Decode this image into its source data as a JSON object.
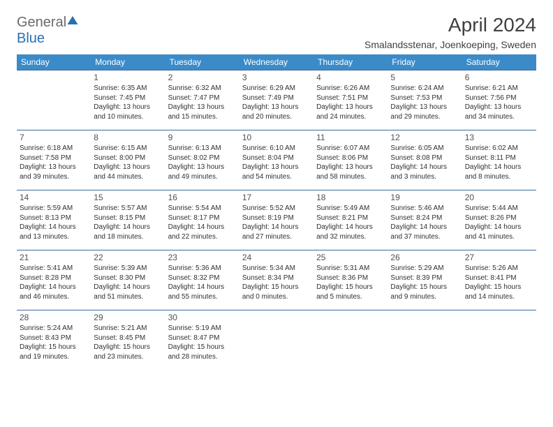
{
  "brand": {
    "part1": "General",
    "part2": "Blue"
  },
  "title": "April 2024",
  "location": "Smalandsstenar, Joenkoeping, Sweden",
  "weekdays": [
    "Sunday",
    "Monday",
    "Tuesday",
    "Wednesday",
    "Thursday",
    "Friday",
    "Saturday"
  ],
  "colors": {
    "header_bg": "#3b8bc9",
    "header_fg": "#ffffff",
    "rule": "#3b6a9a",
    "text": "#303030",
    "title": "#404040"
  },
  "weeks": [
    [
      null,
      {
        "n": "1",
        "sunrise": "6:35 AM",
        "sunset": "7:45 PM",
        "daylight": "13 hours and 10 minutes."
      },
      {
        "n": "2",
        "sunrise": "6:32 AM",
        "sunset": "7:47 PM",
        "daylight": "13 hours and 15 minutes."
      },
      {
        "n": "3",
        "sunrise": "6:29 AM",
        "sunset": "7:49 PM",
        "daylight": "13 hours and 20 minutes."
      },
      {
        "n": "4",
        "sunrise": "6:26 AM",
        "sunset": "7:51 PM",
        "daylight": "13 hours and 24 minutes."
      },
      {
        "n": "5",
        "sunrise": "6:24 AM",
        "sunset": "7:53 PM",
        "daylight": "13 hours and 29 minutes."
      },
      {
        "n": "6",
        "sunrise": "6:21 AM",
        "sunset": "7:56 PM",
        "daylight": "13 hours and 34 minutes."
      }
    ],
    [
      {
        "n": "7",
        "sunrise": "6:18 AM",
        "sunset": "7:58 PM",
        "daylight": "13 hours and 39 minutes."
      },
      {
        "n": "8",
        "sunrise": "6:15 AM",
        "sunset": "8:00 PM",
        "daylight": "13 hours and 44 minutes."
      },
      {
        "n": "9",
        "sunrise": "6:13 AM",
        "sunset": "8:02 PM",
        "daylight": "13 hours and 49 minutes."
      },
      {
        "n": "10",
        "sunrise": "6:10 AM",
        "sunset": "8:04 PM",
        "daylight": "13 hours and 54 minutes."
      },
      {
        "n": "11",
        "sunrise": "6:07 AM",
        "sunset": "8:06 PM",
        "daylight": "13 hours and 58 minutes."
      },
      {
        "n": "12",
        "sunrise": "6:05 AM",
        "sunset": "8:08 PM",
        "daylight": "14 hours and 3 minutes."
      },
      {
        "n": "13",
        "sunrise": "6:02 AM",
        "sunset": "8:11 PM",
        "daylight": "14 hours and 8 minutes."
      }
    ],
    [
      {
        "n": "14",
        "sunrise": "5:59 AM",
        "sunset": "8:13 PM",
        "daylight": "14 hours and 13 minutes."
      },
      {
        "n": "15",
        "sunrise": "5:57 AM",
        "sunset": "8:15 PM",
        "daylight": "14 hours and 18 minutes."
      },
      {
        "n": "16",
        "sunrise": "5:54 AM",
        "sunset": "8:17 PM",
        "daylight": "14 hours and 22 minutes."
      },
      {
        "n": "17",
        "sunrise": "5:52 AM",
        "sunset": "8:19 PM",
        "daylight": "14 hours and 27 minutes."
      },
      {
        "n": "18",
        "sunrise": "5:49 AM",
        "sunset": "8:21 PM",
        "daylight": "14 hours and 32 minutes."
      },
      {
        "n": "19",
        "sunrise": "5:46 AM",
        "sunset": "8:24 PM",
        "daylight": "14 hours and 37 minutes."
      },
      {
        "n": "20",
        "sunrise": "5:44 AM",
        "sunset": "8:26 PM",
        "daylight": "14 hours and 41 minutes."
      }
    ],
    [
      {
        "n": "21",
        "sunrise": "5:41 AM",
        "sunset": "8:28 PM",
        "daylight": "14 hours and 46 minutes."
      },
      {
        "n": "22",
        "sunrise": "5:39 AM",
        "sunset": "8:30 PM",
        "daylight": "14 hours and 51 minutes."
      },
      {
        "n": "23",
        "sunrise": "5:36 AM",
        "sunset": "8:32 PM",
        "daylight": "14 hours and 55 minutes."
      },
      {
        "n": "24",
        "sunrise": "5:34 AM",
        "sunset": "8:34 PM",
        "daylight": "15 hours and 0 minutes."
      },
      {
        "n": "25",
        "sunrise": "5:31 AM",
        "sunset": "8:36 PM",
        "daylight": "15 hours and 5 minutes."
      },
      {
        "n": "26",
        "sunrise": "5:29 AM",
        "sunset": "8:39 PM",
        "daylight": "15 hours and 9 minutes."
      },
      {
        "n": "27",
        "sunrise": "5:26 AM",
        "sunset": "8:41 PM",
        "daylight": "15 hours and 14 minutes."
      }
    ],
    [
      {
        "n": "28",
        "sunrise": "5:24 AM",
        "sunset": "8:43 PM",
        "daylight": "15 hours and 19 minutes."
      },
      {
        "n": "29",
        "sunrise": "5:21 AM",
        "sunset": "8:45 PM",
        "daylight": "15 hours and 23 minutes."
      },
      {
        "n": "30",
        "sunrise": "5:19 AM",
        "sunset": "8:47 PM",
        "daylight": "15 hours and 28 minutes."
      },
      null,
      null,
      null,
      null
    ]
  ],
  "labels": {
    "sunrise": "Sunrise:",
    "sunset": "Sunset:",
    "daylight": "Daylight:"
  }
}
